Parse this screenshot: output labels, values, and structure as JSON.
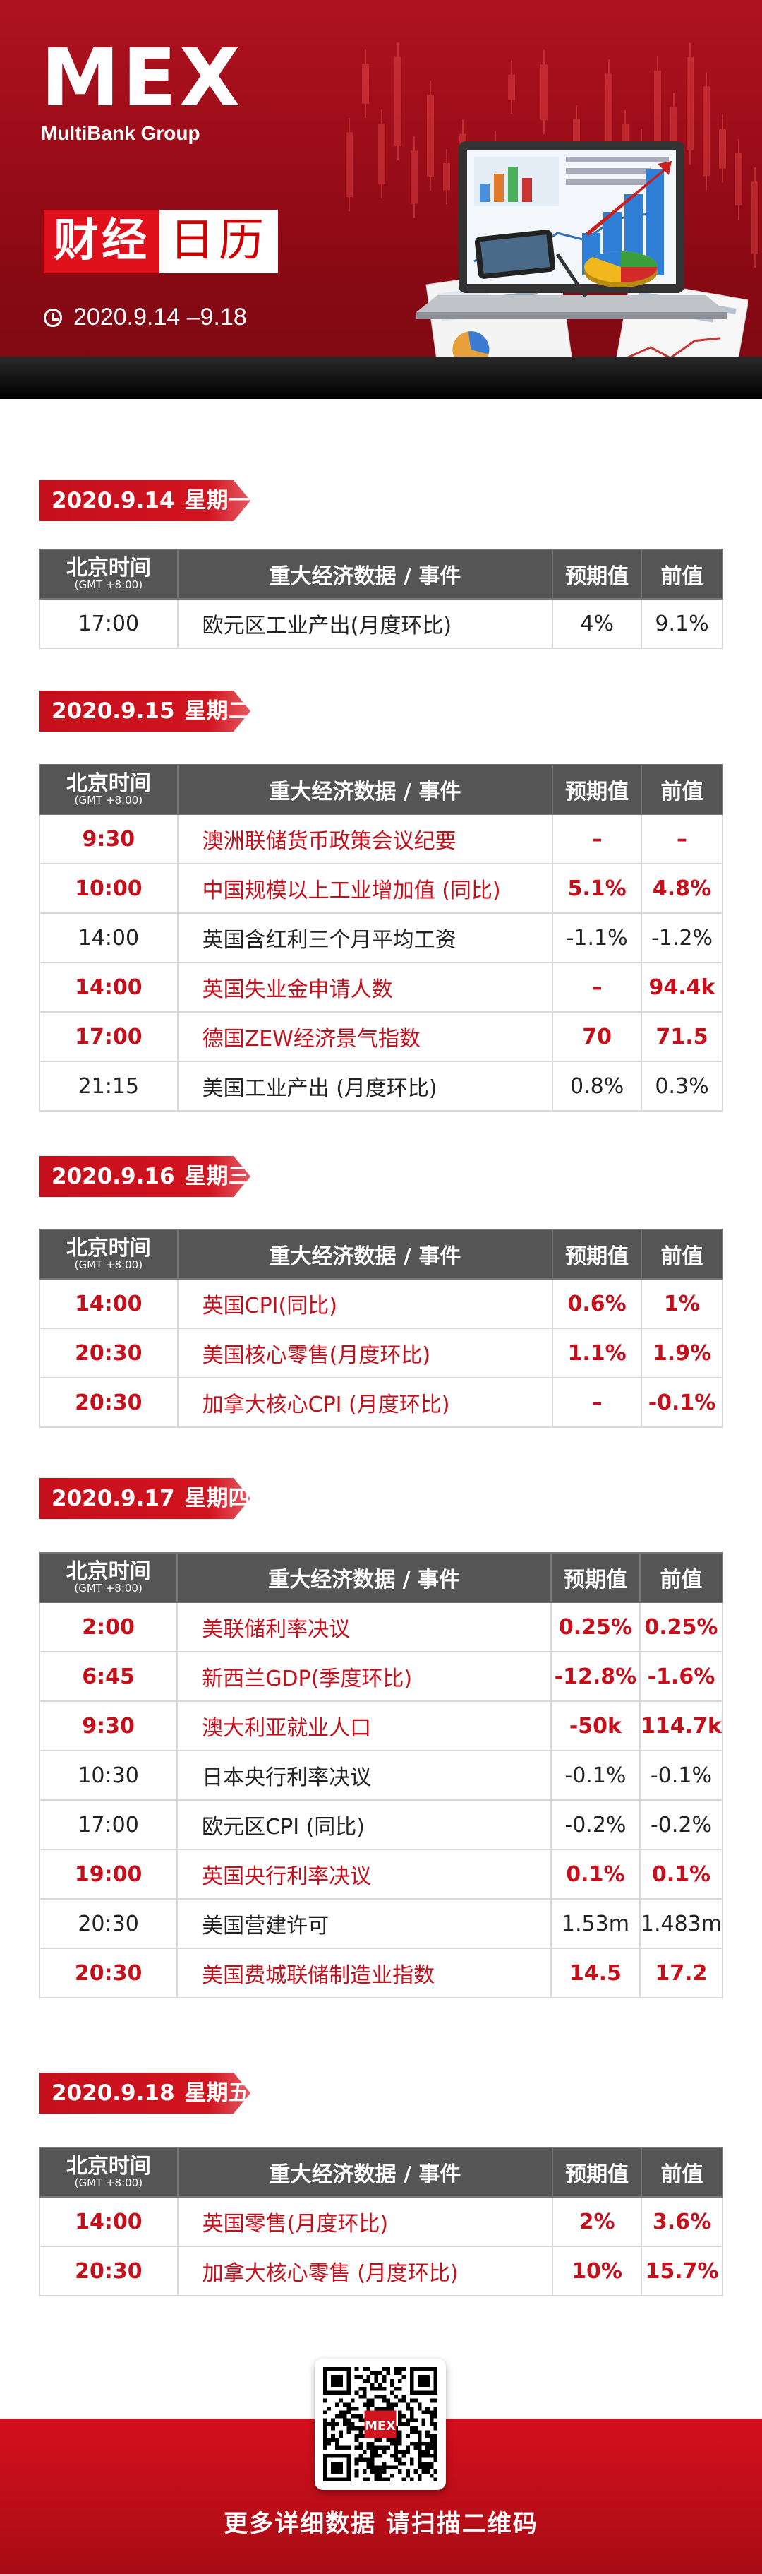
{
  "header": {
    "logo_text": "MEX",
    "logo_sub": "MultiBank Group",
    "title_part1": "财经",
    "title_part2": "日历",
    "date_range": "2020.9.14 –9.18",
    "clock_icon": "clock-icon"
  },
  "table_headers": {
    "time": "北京时间",
    "gmt": "(GMT +8:00)",
    "event": "重大经济数据 / 事件",
    "expected": "预期值",
    "previous": "前值"
  },
  "colors": {
    "accent": "#c50f1b",
    "header_row": "#555555",
    "tag_red": "#d2141f"
  },
  "days": [
    {
      "date": "2020.9.14",
      "weekday": "星期一",
      "rows": [
        {
          "time": "17:00",
          "event": "欧元区工业产出(月度环比)",
          "expected": "4%",
          "previous": "9.1%",
          "highlight": false
        }
      ]
    },
    {
      "date": "2020.9.15",
      "weekday": "星期二",
      "rows": [
        {
          "time": "9:30",
          "event": "澳洲联储货币政策会议纪要",
          "expected": "–",
          "previous": "–",
          "highlight": true
        },
        {
          "time": "10:00",
          "event": "中国规模以上工业增加值 (同比)",
          "expected": "5.1%",
          "previous": "4.8%",
          "highlight": true
        },
        {
          "time": "14:00",
          "event": "英国含红利三个月平均工资",
          "expected": "-1.1%",
          "previous": "-1.2%",
          "highlight": false
        },
        {
          "time": "14:00",
          "event": "英国失业金申请人数",
          "expected": "–",
          "previous": "94.4k",
          "highlight": true
        },
        {
          "time": "17:00",
          "event": "德国ZEW经济景气指数",
          "expected": "70",
          "previous": "71.5",
          "highlight": true
        },
        {
          "time": "21:15",
          "event": "美国工业产出 (月度环比)",
          "expected": "0.8%",
          "previous": "0.3%",
          "highlight": false
        }
      ]
    },
    {
      "date": "2020.9.16",
      "weekday": "星期三",
      "rows": [
        {
          "time": "14:00",
          "event": "英国CPI(同比)",
          "expected": "0.6%",
          "previous": "1%",
          "highlight": true
        },
        {
          "time": "20:30",
          "event": "美国核心零售(月度环比)",
          "expected": "1.1%",
          "previous": "1.9%",
          "highlight": true
        },
        {
          "time": "20:30",
          "event": "加拿大核心CPI (月度环比)",
          "expected": "–",
          "previous": "-0.1%",
          "highlight": true
        }
      ]
    },
    {
      "date": "2020.9.17",
      "weekday": "星期四",
      "rows": [
        {
          "time": "2:00",
          "event": "美联储利率决议",
          "expected": "0.25%",
          "previous": "0.25%",
          "highlight": true
        },
        {
          "time": "6:45",
          "event": "新西兰GDP(季度环比)",
          "expected": "-12.8%",
          "previous": "-1.6%",
          "highlight": true
        },
        {
          "time": "9:30",
          "event": "澳大利亚就业人口",
          "expected": "-50k",
          "previous": "114.7k",
          "highlight": true
        },
        {
          "time": "10:30",
          "event": "日本央行利率决议",
          "expected": "-0.1%",
          "previous": "-0.1%",
          "highlight": false
        },
        {
          "time": "17:00",
          "event": "欧元区CPI (同比)",
          "expected": "-0.2%",
          "previous": "-0.2%",
          "highlight": false
        },
        {
          "time": "19:00",
          "event": "英国央行利率决议",
          "expected": "0.1%",
          "previous": "0.1%",
          "highlight": true
        },
        {
          "time": "20:30",
          "event": "美国营建许可",
          "expected": "1.53m",
          "previous": "1.483m",
          "highlight": false
        },
        {
          "time": "20:30",
          "event": "美国费城联储制造业指数",
          "expected": "14.5",
          "previous": "17.2",
          "highlight": true
        }
      ]
    },
    {
      "date": "2020.9.18",
      "weekday": "星期五",
      "rows": [
        {
          "time": "14:00",
          "event": "英国零售(月度环比)",
          "expected": "2%",
          "previous": "3.6%",
          "highlight": true
        },
        {
          "time": "20:30",
          "event": "加拿大核心零售 (月度环比)",
          "expected": "10%",
          "previous": "15.7%",
          "highlight": true
        }
      ]
    }
  ],
  "footer": {
    "qr_icon": "qr-code-icon",
    "qr_logo": "MEX",
    "text": "更多详细数据 请扫描二维码"
  }
}
